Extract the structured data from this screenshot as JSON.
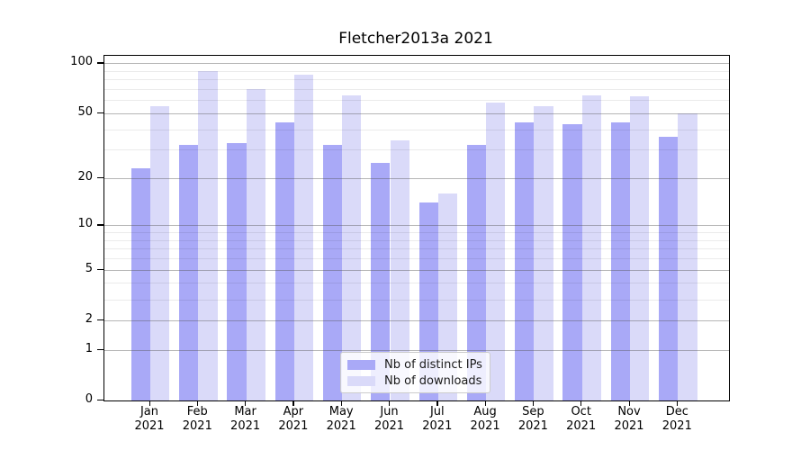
{
  "chart_data": {
    "type": "bar",
    "title": "Fletcher2013a 2021",
    "year_label": "2021",
    "categories": [
      "Jan",
      "Feb",
      "Mar",
      "Apr",
      "May",
      "Jun",
      "Jul",
      "Aug",
      "Sep",
      "Oct",
      "Nov",
      "Dec"
    ],
    "series": [
      {
        "name": "Nb of distinct IPs",
        "color": "#a9a9f7",
        "values": [
          23,
          32,
          33,
          44,
          32,
          25,
          14,
          32,
          44,
          43,
          44,
          36
        ]
      },
      {
        "name": "Nb of downloads",
        "color": "#dadaf9",
        "values": [
          55,
          90,
          70,
          85,
          64,
          34,
          16,
          58,
          55,
          64,
          63,
          50
        ]
      }
    ],
    "yscale": "log1p",
    "ylim": [
      0,
      111
    ],
    "yticks": [
      100,
      50,
      20,
      10,
      5,
      2,
      1,
      0
    ],
    "yticks_minor": [
      90,
      80,
      70,
      60,
      40,
      30,
      9,
      8,
      7,
      6,
      4,
      3
    ],
    "grid": true,
    "legend_position": "lower center",
    "colors": {
      "axis": "#000000",
      "grid_major": "#b0b0b0",
      "grid_minor": "#e8e8e8",
      "background": "#ffffff"
    }
  }
}
